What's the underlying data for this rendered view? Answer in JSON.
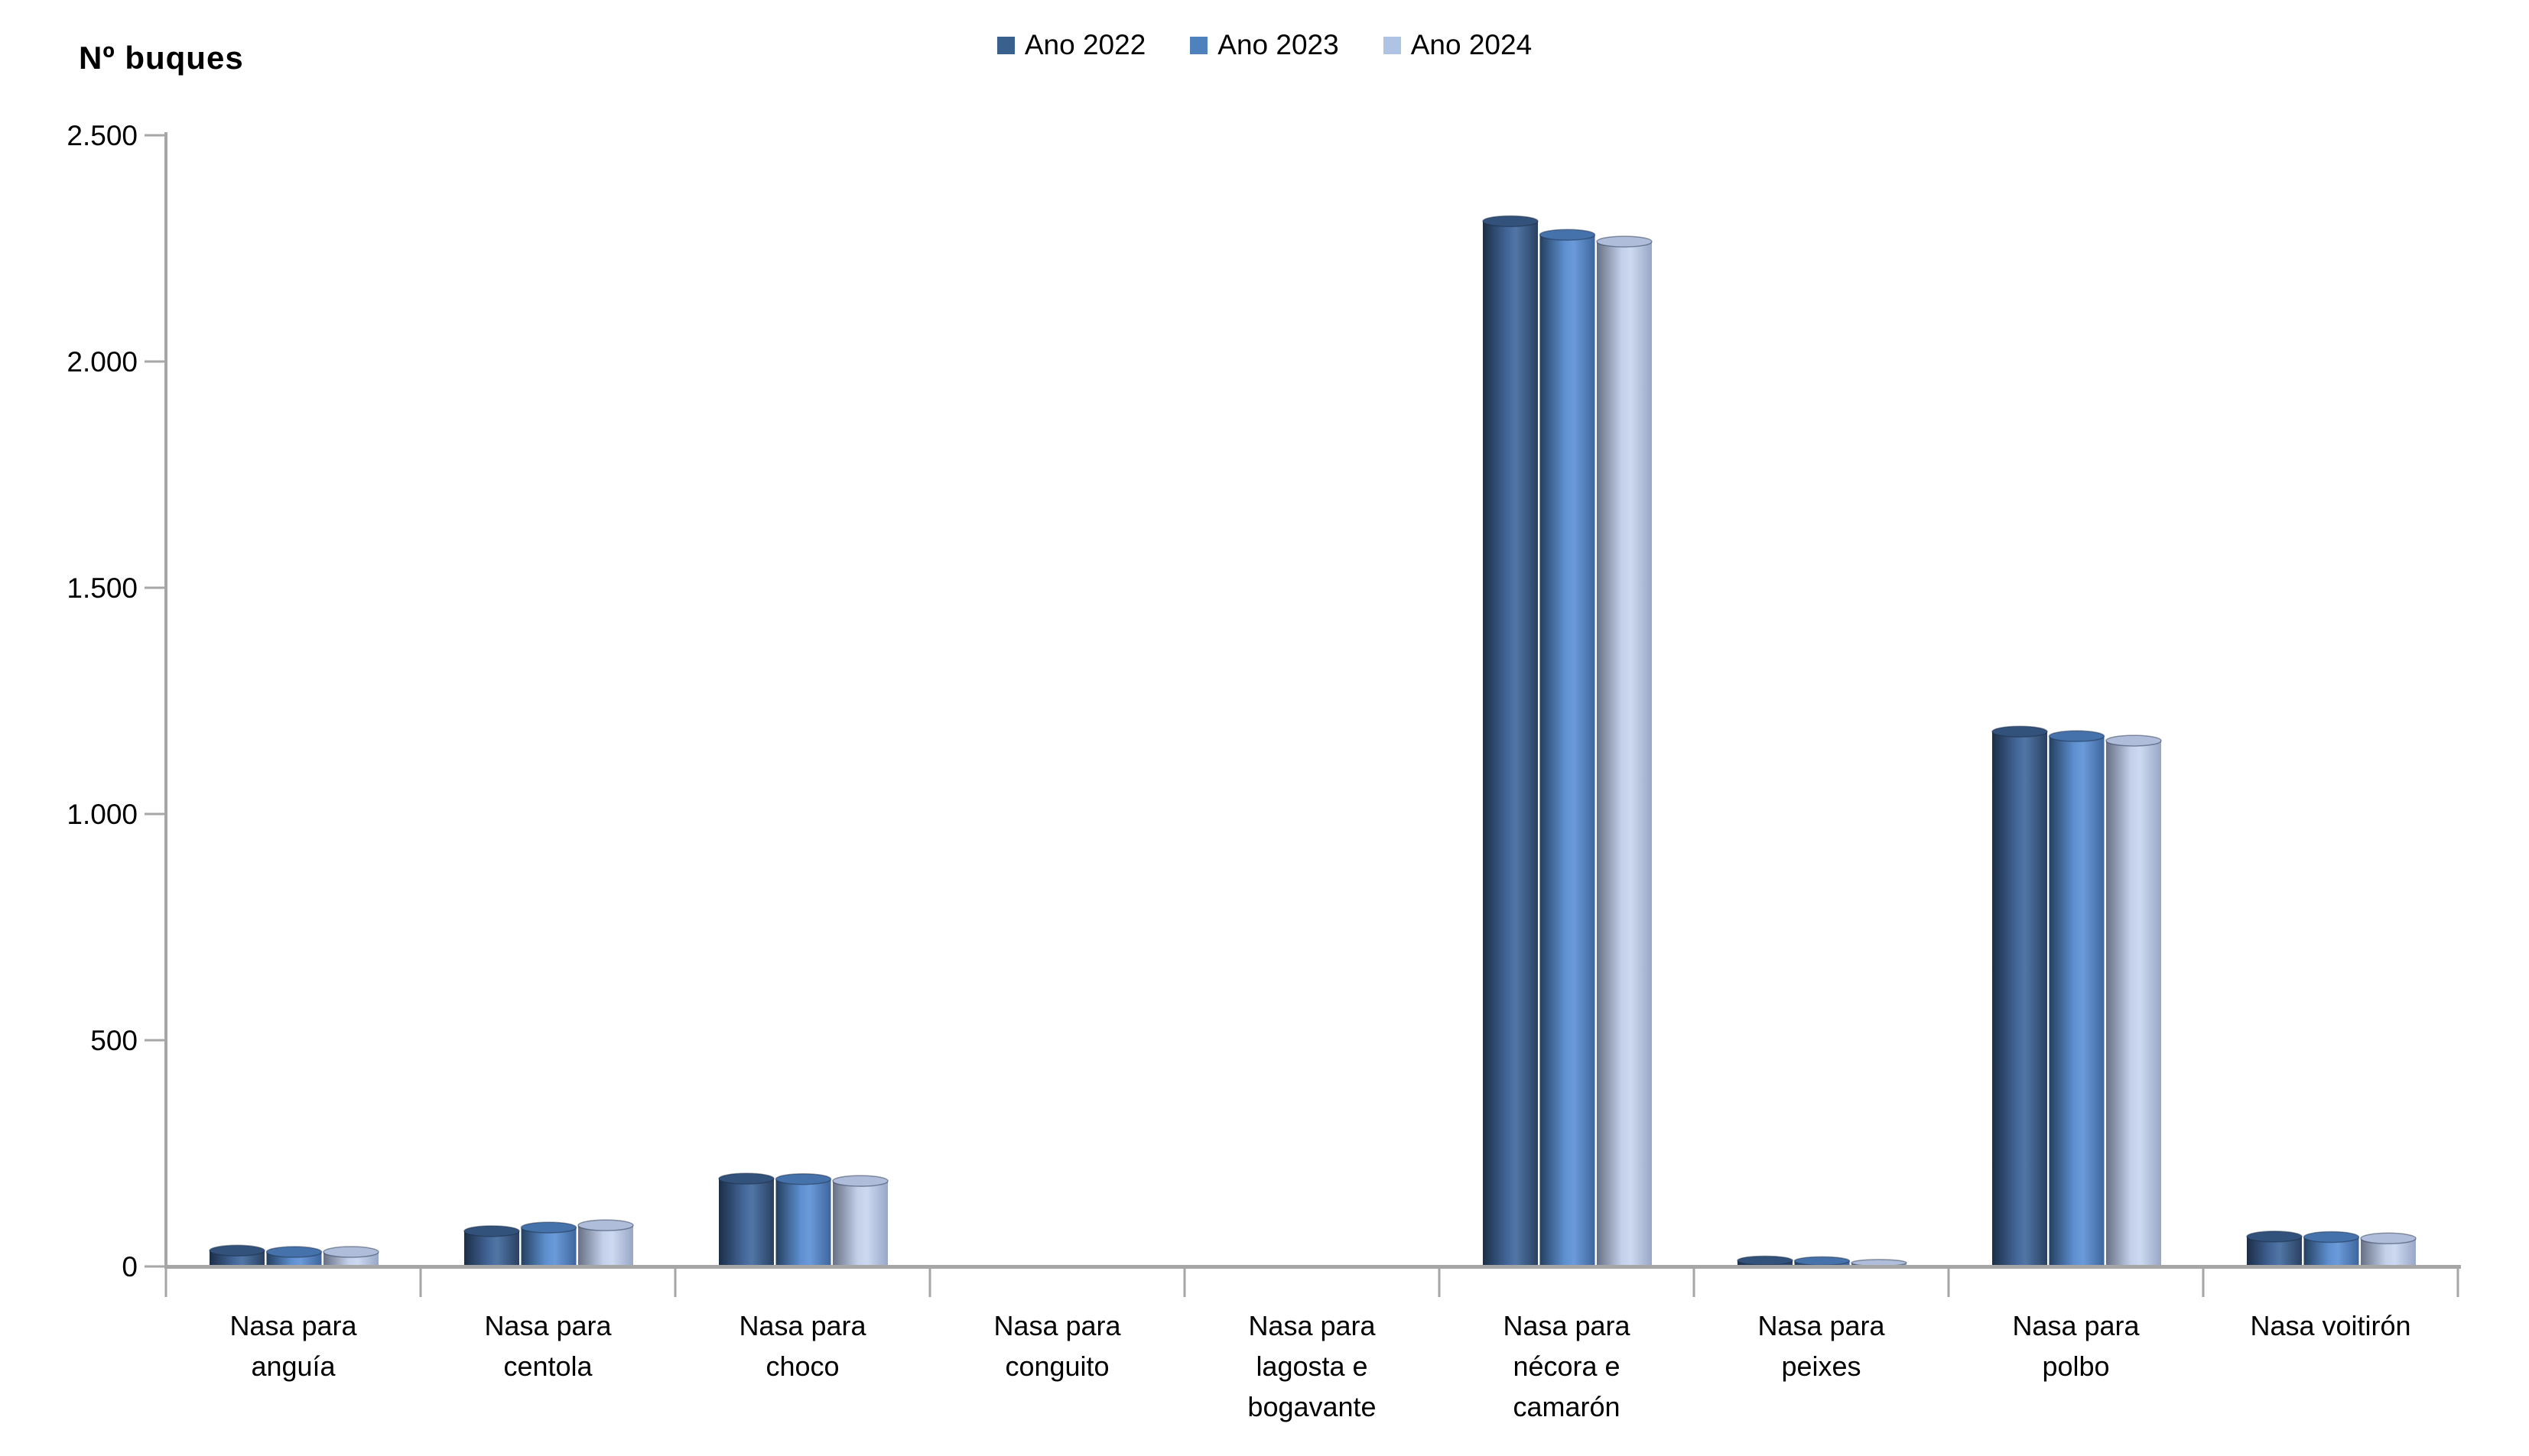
{
  "page": {
    "background": "#FFFFFF"
  },
  "chart_data": {
    "type": "bar",
    "title": "Nº buques",
    "categories": [
      "Nasa para anguía",
      "Nasa para centola",
      "Nasa para choco",
      "Nasa para conguito",
      "Nasa para lagosta e bogavante",
      "Nasa para nécora e camarón",
      "Nasa para peixes",
      "Nasa para polbo",
      "Nasa voitirón"
    ],
    "category_label_lines": [
      [
        "Nasa para",
        "anguía"
      ],
      [
        "Nasa para",
        "centola"
      ],
      [
        "Nasa para",
        "choco"
      ],
      [
        "Nasa para",
        "conguito"
      ],
      [
        "Nasa para",
        "lagosta e",
        "bogavante"
      ],
      [
        "Nasa para",
        "nécora e",
        "camarón"
      ],
      [
        "Nasa para",
        "peixes"
      ],
      [
        "Nasa para",
        "polbo"
      ],
      [
        "Nasa voitirón"
      ]
    ],
    "series": [
      {
        "name": "Ano 2022",
        "legend_color": "#3A608E",
        "gradient": [
          [
            "0%",
            "#1C2E47"
          ],
          [
            "45%",
            "#44679A"
          ],
          [
            "60%",
            "#5076A6"
          ],
          [
            "100%",
            "#2A4061"
          ]
        ],
        "cap_color": "#33527B",
        "values": [
          35,
          78,
          194,
          0,
          0,
          2310,
          13,
          1182,
          66
        ]
      },
      {
        "name": "Ano 2023",
        "legend_color": "#4F81BD",
        "gradient": [
          [
            "0%",
            "#24405F"
          ],
          [
            "45%",
            "#5E8FD0"
          ],
          [
            "62%",
            "#6B9BD9"
          ],
          [
            "100%",
            "#3D659D"
          ]
        ],
        "cap_color": "#4672AC",
        "values": [
          32,
          86,
          193,
          0,
          0,
          2280,
          12,
          1172,
          65
        ]
      },
      {
        "name": "Ano 2024",
        "legend_color": "#AFC3E5",
        "gradient": [
          [
            "0%",
            "#677084"
          ],
          [
            "45%",
            "#C3D0EA"
          ],
          [
            "62%",
            "#CDD9F0"
          ],
          [
            "100%",
            "#98A7C7"
          ]
        ],
        "cap_color": "#AFBDDA",
        "values": [
          32,
          91,
          189,
          0,
          0,
          2265,
          8,
          1162,
          62
        ]
      }
    ],
    "ylim": [
      0,
      2500
    ],
    "yticks": [
      {
        "value": 0,
        "label": "0"
      },
      {
        "value": 500,
        "label": "500"
      },
      {
        "value": 1000,
        "label": "1.000"
      },
      {
        "value": 1500,
        "label": "1.500"
      },
      {
        "value": 2000,
        "label": "2.000"
      },
      {
        "value": 2500,
        "label": "2.500"
      }
    ],
    "grid": false,
    "legend_position": "top",
    "axis_color": "#A6A6A6",
    "text_color": "#000000"
  }
}
